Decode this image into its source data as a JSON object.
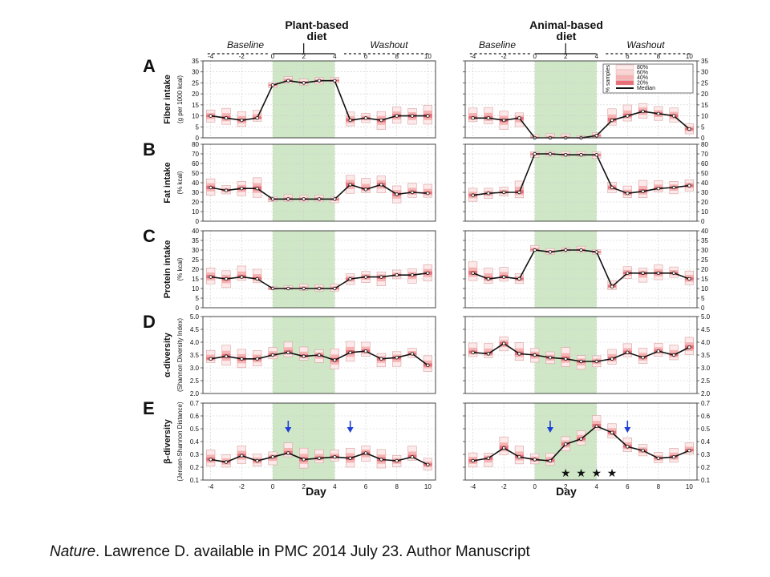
{
  "header": {
    "plant_title_line1": "Plant-based",
    "plant_title_line2": "diet",
    "animal_title_line1": "Animal-based",
    "animal_title_line2": "diet",
    "baseline": "Baseline",
    "washout": "Washout"
  },
  "caption": {
    "journal": "Nature",
    "rest": ". Lawrence D.  available in PMC 2014 July 23. Author Manuscript"
  },
  "legend": {
    "title": "% samples",
    "entries": [
      "80%",
      "60%",
      "40%",
      "20%",
      "Median"
    ]
  },
  "colors": {
    "diet_band": "#cfe7c6",
    "box_80": "#fde9e9",
    "box_40": "#f6b3b3",
    "box_20": "#e86f78",
    "median_line": "#111111",
    "arrow": "#1f3fd6"
  },
  "x_axis": {
    "label": "Day",
    "ticks": [
      "-4",
      "-2",
      "0",
      "2",
      "4",
      "6",
      "8",
      "10"
    ],
    "xlim": [
      -4.5,
      10.5
    ],
    "diet_period": [
      0,
      4
    ]
  },
  "chart_data": [
    {
      "type": "box-line",
      "panel": "A",
      "ylabel": "Fiber intake",
      "ysublabel": "(g per 1000 kcal)",
      "ylim": [
        0,
        35
      ],
      "yticks": [
        "0",
        "5",
        "10",
        "15",
        "20",
        "25",
        "30",
        "35"
      ],
      "series": [
        {
          "name": "Plant-based diet",
          "x": [
            -4,
            -3,
            -2,
            -1,
            0,
            1,
            2,
            3,
            4,
            5,
            6,
            7,
            8,
            9,
            10
          ],
          "median": [
            10,
            9,
            8,
            9,
            24,
            26,
            25,
            26,
            26,
            8,
            9,
            8,
            10,
            10,
            10
          ]
        },
        {
          "name": "Animal-based diet",
          "x": [
            -4,
            -3,
            -2,
            -1,
            0,
            1,
            2,
            3,
            4,
            5,
            6,
            7,
            8,
            9,
            10
          ],
          "median": [
            9,
            9,
            8,
            9,
            0,
            0,
            0,
            0,
            1,
            8,
            10,
            12,
            11,
            10,
            4
          ]
        }
      ]
    },
    {
      "type": "box-line",
      "panel": "B",
      "ylabel": "Fat intake",
      "ysublabel": "(% kcal)",
      "ylim": [
        0,
        80
      ],
      "yticks": [
        "0",
        "10",
        "20",
        "30",
        "40",
        "50",
        "60",
        "70",
        "80"
      ],
      "series": [
        {
          "name": "Plant-based diet",
          "x": [
            -4,
            -3,
            -2,
            -1,
            0,
            1,
            2,
            3,
            4,
            5,
            6,
            7,
            8,
            9,
            10
          ],
          "median": [
            35,
            32,
            34,
            34,
            23,
            23,
            23,
            23,
            23,
            38,
            33,
            38,
            28,
            30,
            29
          ]
        },
        {
          "name": "Animal-based diet",
          "x": [
            -4,
            -3,
            -2,
            -1,
            0,
            1,
            2,
            3,
            4,
            5,
            6,
            7,
            8,
            9,
            10
          ],
          "median": [
            27,
            29,
            30,
            30,
            70,
            70,
            69,
            69,
            69,
            35,
            29,
            31,
            34,
            35,
            37
          ]
        }
      ]
    },
    {
      "type": "box-line",
      "panel": "C",
      "ylabel": "Protein intake",
      "ysublabel": "(% kcal)",
      "ylim": [
        0,
        40
      ],
      "yticks": [
        "0",
        "5",
        "10",
        "15",
        "20",
        "25",
        "30",
        "35",
        "40"
      ],
      "series": [
        {
          "name": "Plant-based diet",
          "x": [
            -4,
            -3,
            -2,
            -1,
            0,
            1,
            2,
            3,
            4,
            5,
            6,
            7,
            8,
            9,
            10
          ],
          "median": [
            16,
            15,
            16,
            15,
            10,
            10,
            10,
            10,
            10,
            15,
            16,
            16,
            17,
            17,
            18
          ]
        },
        {
          "name": "Animal-based diet",
          "x": [
            -4,
            -3,
            -2,
            -1,
            0,
            1,
            2,
            3,
            4,
            5,
            6,
            7,
            8,
            9,
            10
          ],
          "median": [
            18,
            15,
            16,
            15,
            30,
            29,
            30,
            30,
            29,
            11,
            18,
            18,
            18,
            18,
            15
          ]
        }
      ]
    },
    {
      "type": "box-line",
      "panel": "D",
      "ylabel": "α-diversity",
      "ysublabel": "(Shannon Diversity Index)",
      "ylim": [
        2.0,
        5.0
      ],
      "yticks": [
        "2.0",
        "2.5",
        "3.0",
        "3.5",
        "4.0",
        "4.5",
        "5.0"
      ],
      "series": [
        {
          "name": "Plant-based diet",
          "x": [
            -4,
            -3,
            -2,
            -1,
            0,
            1,
            2,
            3,
            4,
            5,
            6,
            7,
            8,
            9,
            10
          ],
          "median": [
            3.35,
            3.45,
            3.35,
            3.35,
            3.5,
            3.6,
            3.45,
            3.5,
            3.3,
            3.6,
            3.65,
            3.35,
            3.4,
            3.55,
            3.1
          ]
        },
        {
          "name": "Animal-based diet",
          "x": [
            -4,
            -3,
            -2,
            -1,
            0,
            1,
            2,
            3,
            4,
            5,
            6,
            7,
            8,
            9,
            10
          ],
          "median": [
            3.6,
            3.55,
            3.95,
            3.55,
            3.5,
            3.4,
            3.35,
            3.25,
            3.25,
            3.35,
            3.6,
            3.4,
            3.65,
            3.5,
            3.8
          ]
        }
      ]
    },
    {
      "type": "box-line",
      "panel": "E",
      "ylabel": "β-diversity",
      "ysublabel": "(Jensen-Shannon Distance)",
      "ylim": [
        0.1,
        0.7
      ],
      "yticks": [
        "0.1",
        "0.2",
        "0.3",
        "0.4",
        "0.5",
        "0.6",
        "0.7"
      ],
      "series": [
        {
          "name": "Plant-based diet",
          "x": [
            -4,
            -3,
            -2,
            -1,
            0,
            1,
            2,
            3,
            4,
            5,
            6,
            7,
            8,
            9,
            10
          ],
          "median": [
            0.26,
            0.24,
            0.29,
            0.25,
            0.28,
            0.31,
            0.26,
            0.27,
            0.28,
            0.27,
            0.31,
            0.26,
            0.25,
            0.28,
            0.22
          ],
          "arrows_at": [
            1,
            5
          ]
        },
        {
          "name": "Animal-based diet",
          "x": [
            -4,
            -3,
            -2,
            -1,
            0,
            1,
            2,
            3,
            4,
            5,
            6,
            7,
            8,
            9,
            10
          ],
          "median": [
            0.25,
            0.27,
            0.35,
            0.28,
            0.26,
            0.25,
            0.38,
            0.42,
            0.52,
            0.47,
            0.36,
            0.33,
            0.27,
            0.28,
            0.33
          ],
          "arrows_at": [
            1,
            6
          ],
          "stars_at": [
            2,
            3,
            4,
            5
          ]
        }
      ]
    }
  ]
}
